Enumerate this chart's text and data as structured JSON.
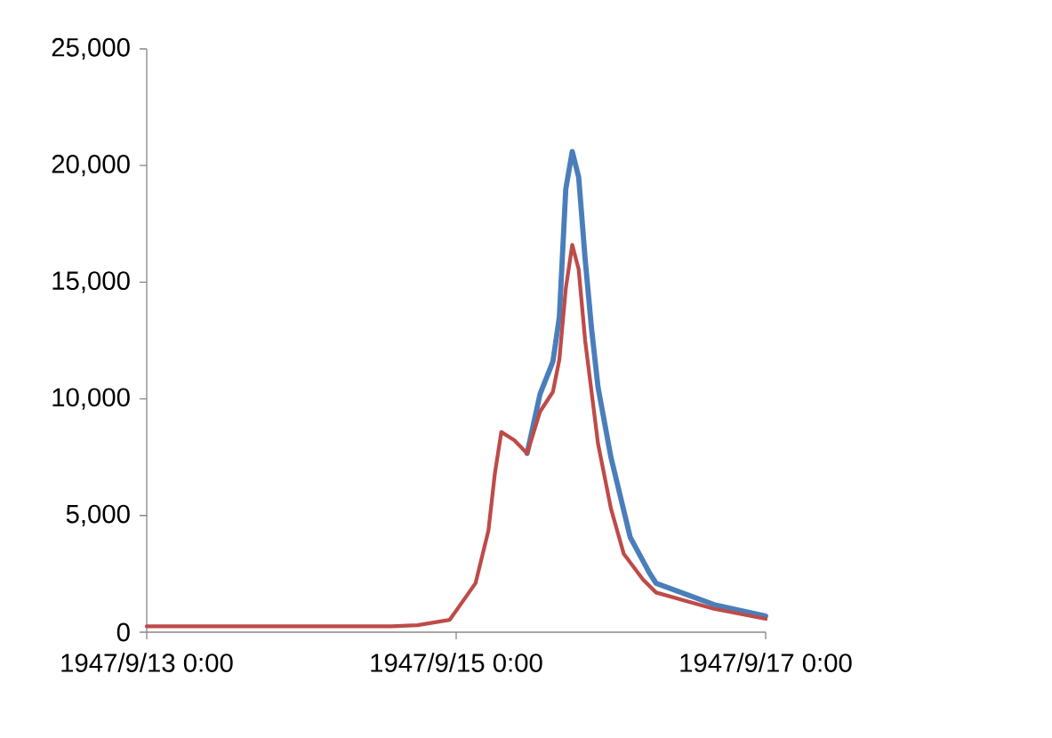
{
  "chart_data": {
    "type": "line",
    "xlim": [
      "1947-09-13T00:00",
      "1947-09-17T00:00"
    ],
    "xticks": [
      {
        "value": "1947-09-13T00:00",
        "label": "1947/9/13 0:00"
      },
      {
        "value": "1947-09-15T00:00",
        "label": "1947/9/15 0:00"
      },
      {
        "value": "1947-09-17T00:00",
        "label": "1947/9/17 0:00"
      }
    ],
    "ylim": [
      0,
      25000
    ],
    "yticks": [
      {
        "value": 0,
        "label": "0"
      },
      {
        "value": 5000,
        "label": "5,000"
      },
      {
        "value": 10000,
        "label": "10,000"
      },
      {
        "value": 15000,
        "label": "15,000"
      },
      {
        "value": 20000,
        "label": "20,000"
      },
      {
        "value": 25000,
        "label": "25,000"
      }
    ],
    "marker": "none",
    "line_style": "solid",
    "series": [
      {
        "color": "#4a7ebb",
        "x": [
          "1947-09-15T11:00",
          "1947-09-15T13:00",
          "1947-09-15T15:00",
          "1947-09-15T16:00",
          "1947-09-15T17:00",
          "1947-09-15T18:00",
          "1947-09-15T19:00",
          "1947-09-15T20:00",
          "1947-09-15T21:00",
          "1947-09-15T22:00",
          "1947-09-16T00:00",
          "1947-09-16T03:00",
          "1947-09-16T06:00",
          "1947-09-16T07:00",
          "1947-09-16T16:00",
          "1947-09-17T00:00"
        ],
        "values": [
          7660,
          10200,
          11600,
          13500,
          19000,
          20600,
          19500,
          16000,
          13000,
          10500,
          7500,
          4060,
          2530,
          2100,
          1180,
          690
        ]
      },
      {
        "color": "#be4b48",
        "x": [
          "1947-09-13T00:00",
          "1947-09-14T14:00",
          "1947-09-14T18:00",
          "1947-09-14T23:00",
          "1947-09-15T03:00",
          "1947-09-15T05:00",
          "1947-09-15T06:00",
          "1947-09-15T07:00",
          "1947-09-15T09:00",
          "1947-09-15T11:00",
          "1947-09-15T13:00",
          "1947-09-15T15:00",
          "1947-09-15T16:00",
          "1947-09-15T17:00",
          "1947-09-15T18:00",
          "1947-09-15T19:00",
          "1947-09-15T20:00",
          "1947-09-15T22:00",
          "1947-09-16T00:00",
          "1947-09-16T02:00",
          "1947-09-16T05:00",
          "1947-09-16T07:00",
          "1947-09-16T16:00",
          "1947-09-17T00:00"
        ],
        "values": [
          250,
          250,
          300,
          530,
          2100,
          4350,
          6800,
          8580,
          8230,
          7660,
          9450,
          10300,
          11680,
          14730,
          16600,
          15550,
          12500,
          8080,
          5300,
          3350,
          2250,
          1700,
          1000,
          570
        ]
      }
    ]
  }
}
